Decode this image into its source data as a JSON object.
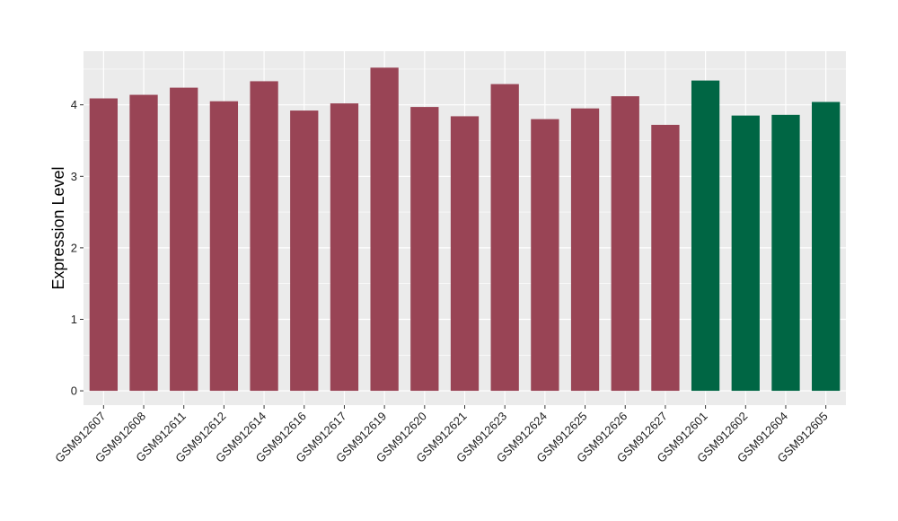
{
  "chart_data": {
    "type": "bar",
    "title": "",
    "xlabel": "",
    "ylabel": "Expression Level",
    "ylim": [
      -0.2,
      4.75
    ],
    "yticks": [
      0,
      1,
      2,
      3,
      4
    ],
    "grid": true,
    "legend": "none",
    "colors": {
      "group_a": "#994455",
      "group_b": "#006644",
      "panel_bg": "#EBEBEB",
      "grid": "#FFFFFF"
    },
    "categories": [
      "GSM912607",
      "GSM912608",
      "GSM912611",
      "GSM912612",
      "GSM912614",
      "GSM912616",
      "GSM912617",
      "GSM912619",
      "GSM912620",
      "GSM912621",
      "GSM912623",
      "GSM912624",
      "GSM912625",
      "GSM912626",
      "GSM912627",
      "GSM912601",
      "GSM912602",
      "GSM912604",
      "GSM912605"
    ],
    "values": [
      4.09,
      4.14,
      4.24,
      4.05,
      4.33,
      3.92,
      4.02,
      4.52,
      3.97,
      3.84,
      4.29,
      3.8,
      3.95,
      4.12,
      3.72,
      4.34,
      3.85,
      3.86,
      4.04
    ],
    "groups": [
      "a",
      "a",
      "a",
      "a",
      "a",
      "a",
      "a",
      "a",
      "a",
      "a",
      "a",
      "a",
      "a",
      "a",
      "a",
      "b",
      "b",
      "b",
      "b"
    ]
  }
}
